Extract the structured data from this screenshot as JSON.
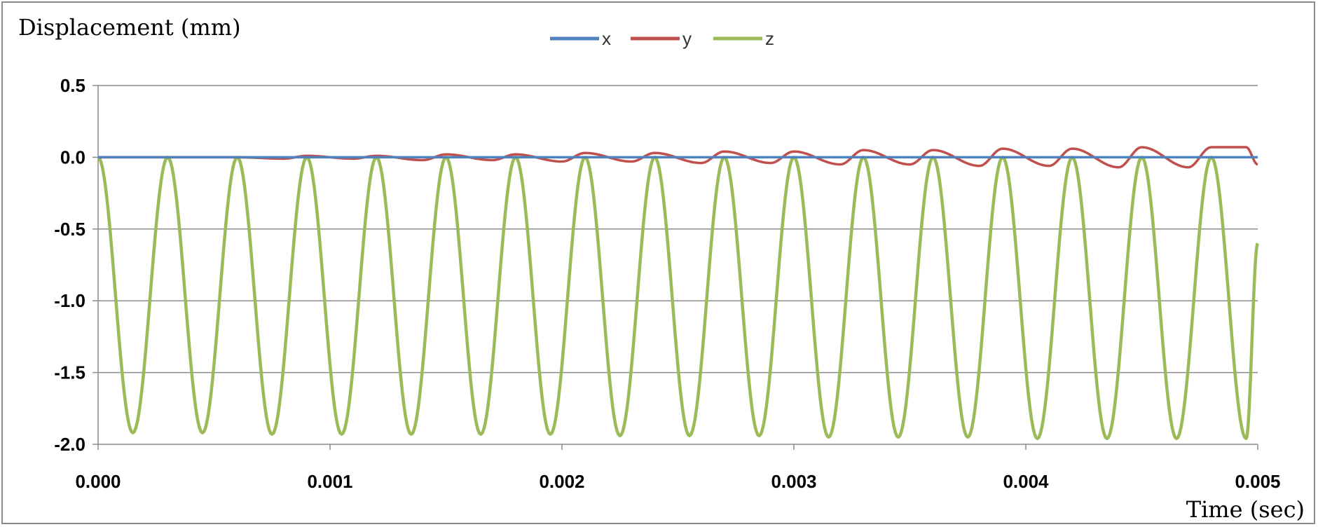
{
  "chart_data": {
    "type": "line",
    "title": "",
    "ylabel": "Displacement (mm)",
    "xlabel": "Time (sec)",
    "xlim": [
      0.0,
      0.005
    ],
    "ylim": [
      -2.0,
      0.5
    ],
    "x_ticks": [
      "0.000",
      "0.001",
      "0.002",
      "0.003",
      "0.004",
      "0.005"
    ],
    "y_ticks": [
      "0.5",
      "0.0",
      "-0.5",
      "-1.0",
      "-1.5",
      "-2.0"
    ],
    "grid": "horizontal",
    "legend_position": "top-center",
    "series": [
      {
        "name": "x",
        "color": "#4f81bd",
        "x": [
          0.0,
          0.001,
          0.002,
          0.003,
          0.004,
          0.005
        ],
        "y": [
          0.0,
          0.0,
          0.0,
          0.0,
          0.0,
          0.0
        ]
      },
      {
        "name": "y",
        "color": "#c0504d",
        "x": [
          0.0,
          0.00025,
          0.0005,
          0.0006,
          0.0008,
          0.0009,
          0.0011,
          0.0012,
          0.0014,
          0.0015,
          0.0017,
          0.0018,
          0.002,
          0.0021,
          0.0023,
          0.0024,
          0.0026,
          0.0027,
          0.0029,
          0.003,
          0.0032,
          0.0033,
          0.0035,
          0.0036,
          0.0038,
          0.0039,
          0.0041,
          0.0042,
          0.0044,
          0.0045,
          0.0047,
          0.0048,
          0.00495,
          0.005
        ],
        "y": [
          0.0,
          0.0,
          0.0,
          0.0,
          -0.01,
          0.01,
          -0.01,
          0.01,
          -0.02,
          0.02,
          -0.02,
          0.02,
          -0.03,
          0.03,
          -0.03,
          0.03,
          -0.04,
          0.04,
          -0.04,
          0.04,
          -0.05,
          0.05,
          -0.05,
          0.05,
          -0.06,
          0.06,
          -0.06,
          0.06,
          -0.07,
          0.07,
          -0.07,
          0.07,
          0.07,
          -0.05
        ]
      },
      {
        "name": "z",
        "color": "#9bbb59",
        "x": [
          0.0,
          0.00015,
          0.0003,
          0.00045,
          0.0006,
          0.00075,
          0.0009,
          0.00105,
          0.0012,
          0.00135,
          0.0015,
          0.00165,
          0.0018,
          0.00195,
          0.0021,
          0.00225,
          0.0024,
          0.00255,
          0.0027,
          0.00285,
          0.003,
          0.00315,
          0.0033,
          0.00345,
          0.0036,
          0.00375,
          0.0039,
          0.00405,
          0.0042,
          0.00435,
          0.0045,
          0.00465,
          0.0048,
          0.00495,
          0.005
        ],
        "y": [
          0.0,
          -1.92,
          0.0,
          -1.92,
          0.0,
          -1.93,
          0.0,
          -1.93,
          0.0,
          -1.93,
          0.0,
          -1.93,
          0.0,
          -1.93,
          0.0,
          -1.94,
          0.0,
          -1.94,
          0.0,
          -1.94,
          0.0,
          -1.95,
          0.0,
          -1.95,
          0.0,
          -1.95,
          0.0,
          -1.96,
          0.0,
          -1.96,
          0.0,
          -1.96,
          0.0,
          -1.96,
          -0.6
        ],
        "oscillation": {
          "period_sec": 0.0003,
          "min": -1.95,
          "max": 0.0
        }
      }
    ]
  }
}
